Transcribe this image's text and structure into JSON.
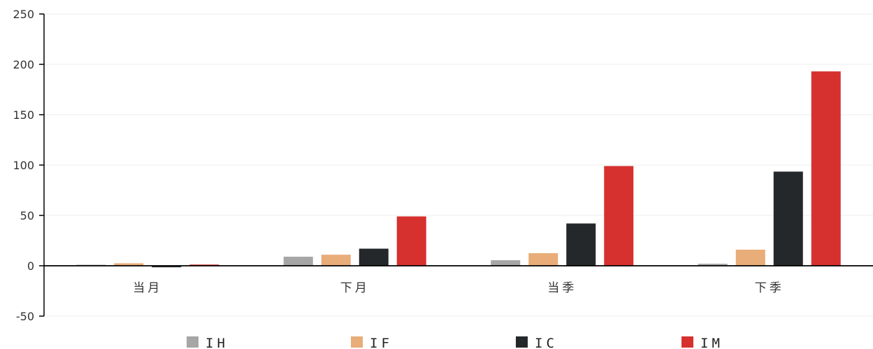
{
  "chart_data": {
    "type": "bar",
    "categories": [
      "当月",
      "下月",
      "当季",
      "下季"
    ],
    "series": [
      {
        "name": "IH",
        "color": "#a6a6a6",
        "values": [
          1,
          9,
          5.5,
          2
        ]
      },
      {
        "name": "IF",
        "color": "#e8ad78",
        "values": [
          2.5,
          11,
          12.5,
          16
        ]
      },
      {
        "name": "IC",
        "color": "#25282a",
        "values": [
          -1.5,
          17,
          42,
          93.5
        ]
      },
      {
        "name": "IM",
        "color": "#d6312e",
        "values": [
          1.2,
          49,
          99,
          193
        ]
      }
    ],
    "ylim": [
      -50,
      250
    ],
    "yticks": [
      -50,
      0,
      50,
      100,
      150,
      200,
      250
    ],
    "grid": true,
    "legend_position": "bottom"
  }
}
